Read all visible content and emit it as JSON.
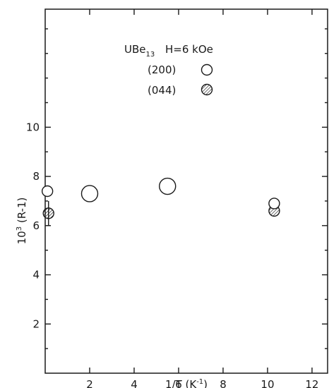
{
  "chart_data": {
    "type": "scatter",
    "title": "",
    "xlabel": {
      "base": "1/T  (K",
      "sup": "-1",
      "close": ")"
    },
    "ylabel": {
      "prefix": "10",
      "sup": "3",
      "rest": " (R-1)"
    },
    "xlim": [
      0,
      12.7
    ],
    "ylim": [
      0,
      14.8
    ],
    "xticks": [
      2,
      4,
      6,
      8,
      10,
      12
    ],
    "yticks": [
      2,
      4,
      6,
      8,
      10
    ],
    "grid": false,
    "legend_placement": "top-center",
    "legend": {
      "compound": {
        "base": "UBe",
        "sub": "13"
      },
      "field": "H=6 kOe",
      "entries": [
        "(200)",
        "(044)"
      ]
    },
    "series": [
      {
        "name": "(200)",
        "marker": "open-circle",
        "points": [
          {
            "x": 0.1,
            "y": 7.4,
            "size": "small"
          },
          {
            "x": 2.0,
            "y": 7.3,
            "size": "large"
          },
          {
            "x": 5.5,
            "y": 7.6,
            "size": "large"
          },
          {
            "x": 10.3,
            "y": 6.9,
            "size": "small"
          }
        ]
      },
      {
        "name": "(044)",
        "marker": "hatched-circle",
        "points": [
          {
            "x": 0.15,
            "y": 6.5,
            "size": "small",
            "error": 0.5
          },
          {
            "x": 10.3,
            "y": 6.6,
            "size": "small"
          }
        ]
      }
    ]
  }
}
